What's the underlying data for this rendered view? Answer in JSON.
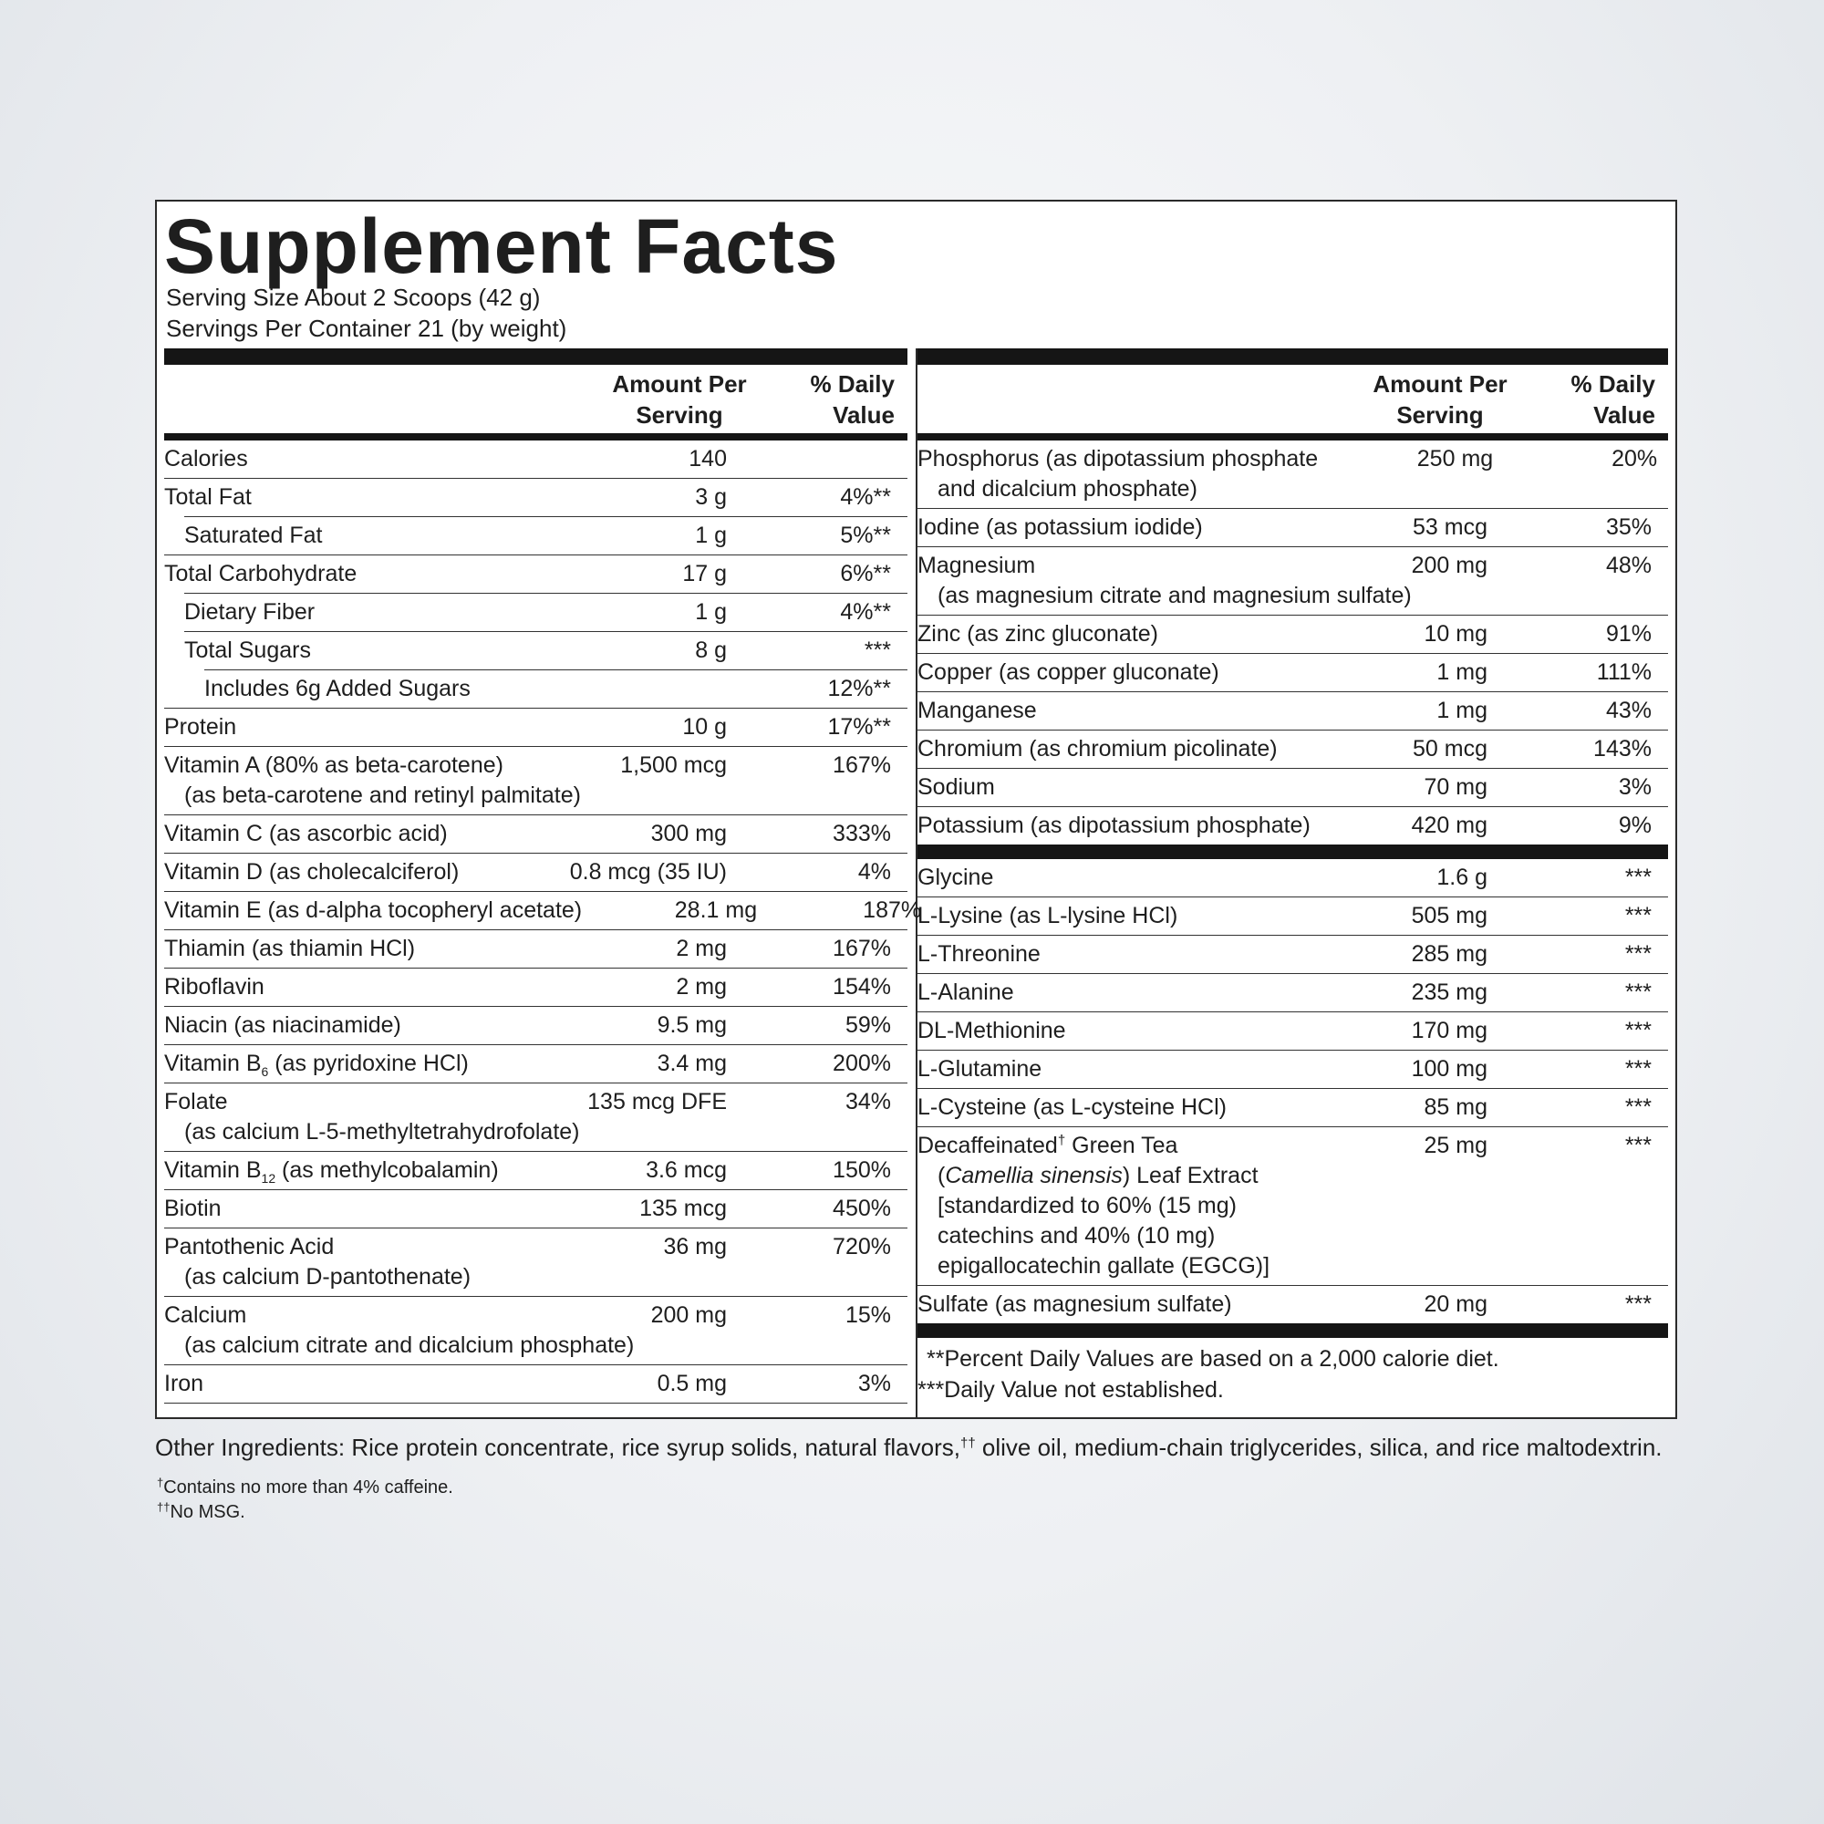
{
  "title": "Supplement Facts",
  "serving_size": "Serving Size About 2 Scoops (42 g)",
  "servings_per_container": "Servings Per Container 21 (by weight)",
  "columns": [
    {
      "header": {
        "amount": "Amount Per Serving",
        "daily_value": "% Daily Value"
      },
      "groups": [
        {
          "rows": [
            {
              "name": "Calories",
              "amount": "140"
            },
            {
              "name": "Total Fat",
              "amount": "3 g",
              "dv": "4%**"
            },
            {
              "name": "Saturated Fat",
              "amount": "1 g",
              "dv": "5%**"
            },
            {
              "name": "Total Carbohydrate",
              "amount": "17 g",
              "dv": "6%**"
            },
            {
              "name": "Dietary Fiber",
              "amount": "1 g",
              "dv": "4%**"
            },
            {
              "name": "Total Sugars",
              "amount": "8 g",
              "dv": "***"
            },
            {
              "name": "Includes 6g Added Sugars",
              "dv": "12%**"
            },
            {
              "name": "Protein",
              "amount": "10 g",
              "dv": "17%**"
            },
            {
              "name": "Vitamin A (80% as beta-carotene)",
              "detail": [
                "(as beta-carotene and retinyl palmitate)"
              ],
              "amount": "1,500 mcg",
              "dv": "167%"
            },
            {
              "name": "Vitamin C (as ascorbic acid)",
              "amount": "300 mg",
              "dv": "333%"
            },
            {
              "name": "Vitamin D (as cholecalciferol)",
              "amount": "0.8 mcg (35 IU)",
              "dv": "4%"
            },
            {
              "name": "Vitamin E (as d-alpha tocopheryl acetate)",
              "amount": "28.1 mg",
              "dv": "187%"
            },
            {
              "name": "Thiamin (as thiamin HCl)",
              "amount": "2 mg",
              "dv": "167%"
            },
            {
              "name": "Riboflavin",
              "amount": "2 mg",
              "dv": "154%"
            },
            {
              "name": "Niacin (as niacinamide)",
              "amount": "9.5 mg",
              "dv": "59%"
            },
            {
              "name": [
                "Vitamin B",
                {
                  "sub": "6"
                },
                " (as pyridoxine HCl)"
              ],
              "amount": "3.4 mg",
              "dv": "200%"
            },
            {
              "name": "Folate",
              "detail": [
                "(as calcium L-5-methyltetrahydrofolate)"
              ],
              "amount": "135 mcg DFE",
              "dv": "34%"
            },
            {
              "name": [
                "Vitamin B",
                {
                  "sub": "12"
                },
                " (as methylcobalamin)"
              ],
              "amount": "3.6 mcg",
              "dv": "150%"
            },
            {
              "name": "Biotin",
              "amount": "135 mcg",
              "dv": "450%"
            },
            {
              "name": "Pantothenic Acid",
              "detail": [
                "(as calcium D-pantothenate)"
              ],
              "amount": "36 mg",
              "dv": "720%"
            },
            {
              "name": "Calcium",
              "detail": [
                "(as calcium citrate and dicalcium phosphate)"
              ],
              "amount": "200 mg",
              "dv": "15%"
            },
            {
              "name": "Iron",
              "amount": "0.5 mg",
              "dv": "3%"
            }
          ]
        }
      ]
    },
    {
      "header": {
        "amount": "Amount Per Serving",
        "daily_value": "% Daily Value"
      },
      "groups": [
        {
          "rows": [
            {
              "name": "Phosphorus (as dipotassium phosphate",
              "detail": [
                "and dicalcium phosphate)"
              ],
              "amount": "250 mg",
              "dv": "20%"
            },
            {
              "name": "Iodine (as potassium iodide)",
              "amount": "53 mcg",
              "dv": "35%"
            },
            {
              "name": "Magnesium",
              "detail": [
                "(as magnesium citrate and magnesium sulfate)"
              ],
              "amount": "200 mg",
              "dv": "48%"
            },
            {
              "name": "Zinc (as zinc gluconate)",
              "amount": "10 mg",
              "dv": "91%"
            },
            {
              "name": "Copper (as copper gluconate)",
              "amount": "1 mg",
              "dv": "111%"
            },
            {
              "name": "Manganese",
              "amount": "1 mg",
              "dv": "43%"
            },
            {
              "name": "Chromium (as chromium picolinate)",
              "amount": "50 mcg",
              "dv": "143%"
            },
            {
              "name": "Sodium",
              "amount": "70 mg",
              "dv": "3%"
            },
            {
              "name": "Potassium (as dipotassium phosphate)",
              "amount": "420 mg",
              "dv": "9%"
            }
          ]
        },
        {
          "rows": [
            {
              "name": "Glycine",
              "amount": "1.6 g",
              "dv": "***"
            },
            {
              "name": "L-Lysine (as L-lysine HCl)",
              "amount": "505 mg",
              "dv": "***"
            },
            {
              "name": "L-Threonine",
              "amount": "285 mg",
              "dv": "***"
            },
            {
              "name": "L-Alanine",
              "amount": "235 mg",
              "dv": "***"
            },
            {
              "name": "DL-Methionine",
              "amount": "170 mg",
              "dv": "***"
            },
            {
              "name": "L-Glutamine",
              "amount": "100 mg",
              "dv": "***"
            },
            {
              "name": "L-Cysteine (as L-cysteine HCl)",
              "amount": "85 mg",
              "dv": "***"
            },
            {
              "name": [
                "Decaffeinated",
                {
                  "sup": "†"
                },
                " Green Tea"
              ],
              "detail": [
                [
                  "(",
                  {
                    "i": "Camellia sinensis"
                  },
                  ") Leaf Extract"
                ],
                "[standardized to 60% (15 mg)",
                "catechins and 40% (10 mg)",
                "epigallocatechin gallate (EGCG)]"
              ],
              "amount": "25 mg",
              "dv": "***"
            },
            {
              "name": "Sulfate (as magnesium sulfate)",
              "amount": "20 mg",
              "dv": "***"
            }
          ]
        }
      ]
    }
  ],
  "footnotes": [
    "**Percent Daily Values are based on a 2,000 calorie diet.",
    "***Daily Value not established."
  ],
  "other_ingredients": [
    "Other Ingredients: Rice protein concentrate, rice syrup solids, natural flavors,",
    {
      "sup": "††"
    },
    " olive oil, medium-chain triglycerides, silica, and rice maltodextrin."
  ],
  "notes": [
    [
      {
        "sup": "†"
      },
      "Contains no more than 4% caffeine."
    ],
    [
      {
        "sup": "††"
      },
      "No MSG."
    ]
  ]
}
